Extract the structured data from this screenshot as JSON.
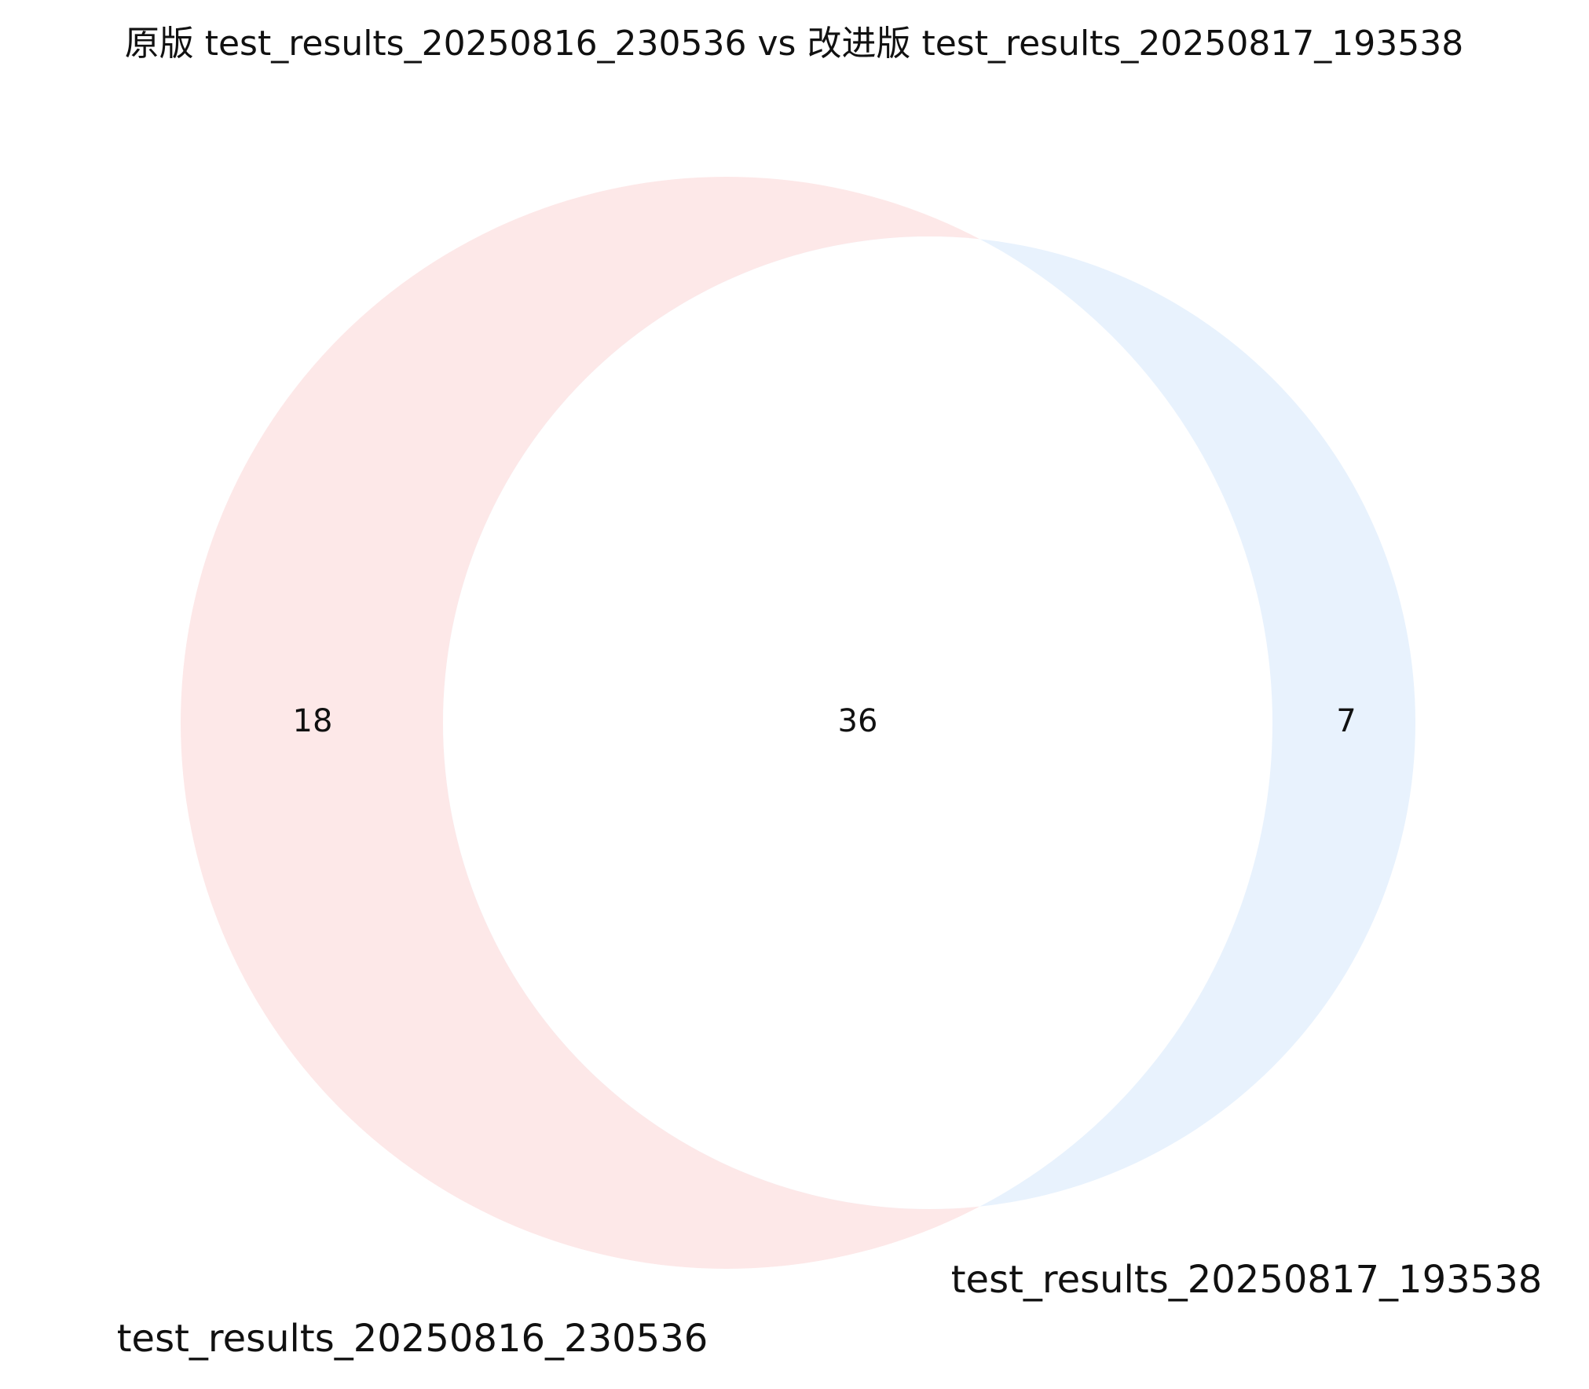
{
  "chart_data": {
    "type": "venn",
    "title": "原版 test_results_20250816_230536 vs 改进版 test_results_20250817_193538",
    "sets": [
      {
        "label": "test_results_20250816_230536",
        "only_count": "18",
        "color": "#fde8e8"
      },
      {
        "label": "test_results_20250817_193538",
        "only_count": "7",
        "color": "#e8f2fd"
      }
    ],
    "intersection_count": "36",
    "intersection_color": "#ffffff"
  }
}
